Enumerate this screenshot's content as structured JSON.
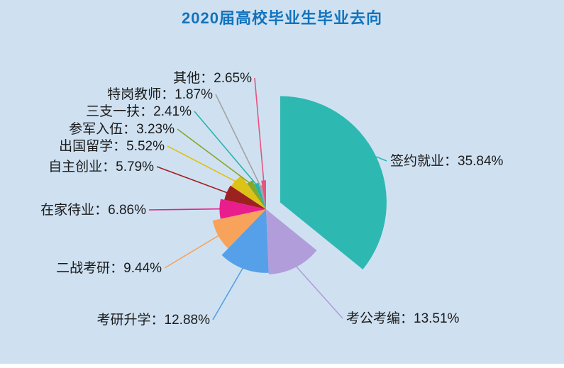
{
  "page": {
    "background": "#cfe1f1"
  },
  "header": {
    "title_color": "#1273bd"
  },
  "chart_data": {
    "type": "pie",
    "style": "rose",
    "title": "2020届高校毕业生毕业去向",
    "label_format": "{label}：{value}%",
    "direction": "clockwise",
    "start_angle_deg": 0,
    "exploded_slice_index": 0,
    "label_text_color": "#1a1a1a",
    "slices": [
      {
        "label": "签约就业",
        "value": 35.84,
        "color": "#2eb8b2"
      },
      {
        "label": "考公考编",
        "value": 13.51,
        "color": "#b29ddb"
      },
      {
        "label": "考研升学",
        "value": 12.88,
        "color": "#55a0e8"
      },
      {
        "label": "二战考研",
        "value": 9.44,
        "color": "#f7a35c"
      },
      {
        "label": "在家待业",
        "value": 6.86,
        "color": "#ea1d8d"
      },
      {
        "label": "自主创业",
        "value": 5.79,
        "color": "#9e2121"
      },
      {
        "label": "出国留学",
        "value": 5.52,
        "color": "#ddc217"
      },
      {
        "label": "参军入伍",
        "value": 3.23,
        "color": "#84a82a"
      },
      {
        "label": "三支一扶",
        "value": 2.41,
        "color": "#27b3ad"
      },
      {
        "label": "特岗教师",
        "value": 1.87,
        "color": "#a2a2a2"
      },
      {
        "label": "其他",
        "value": 2.65,
        "color": "#e8537f"
      }
    ]
  }
}
